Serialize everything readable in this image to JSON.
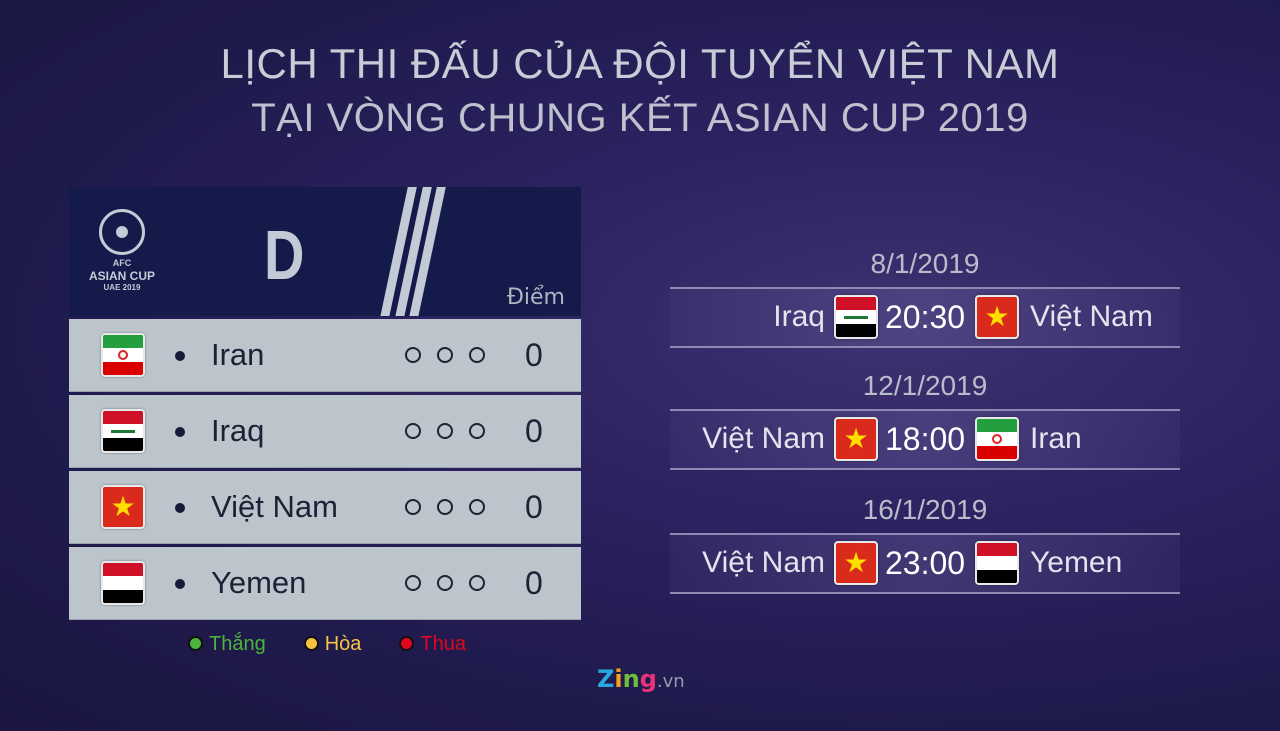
{
  "title": {
    "line1": "LỊCH THI ĐẤU CỦA ĐỘI TUYỂN VIỆT NAM",
    "line2": "TẠI VÒNG CHUNG KẾT ASIAN CUP 2019"
  },
  "table": {
    "logo": {
      "line1": "AFC",
      "line2": "ASIAN CUP",
      "line3": "UAE 2019"
    },
    "group": "D",
    "points_header": "Điểm",
    "rows": [
      {
        "team": "Iran",
        "flag": "iran",
        "points": "0"
      },
      {
        "team": "Iraq",
        "flag": "iraq",
        "points": "0"
      },
      {
        "team": "Việt Nam",
        "flag": "vietnam",
        "points": "0"
      },
      {
        "team": "Yemen",
        "flag": "yemen",
        "points": "0"
      }
    ]
  },
  "legend": [
    {
      "label": "Thắng",
      "color": "#4bb43a"
    },
    {
      "label": "Hòa",
      "color": "#f7c244"
    },
    {
      "label": "Thua",
      "color": "#e0061d"
    }
  ],
  "schedule": [
    {
      "date": "8/1/2019",
      "home": "Iraq",
      "home_flag": "iraq",
      "time": "20:30",
      "away": "Việt Nam",
      "away_flag": "vietnam"
    },
    {
      "date": "12/1/2019",
      "home": "Việt Nam",
      "home_flag": "vietnam",
      "time": "18:00",
      "away": "Iran",
      "away_flag": "iran"
    },
    {
      "date": "16/1/2019",
      "home": "Việt Nam",
      "home_flag": "vietnam",
      "time": "23:00",
      "away": "Yemen",
      "away_flag": "yemen"
    }
  ],
  "watermark": {
    "brand": "Zing",
    "suffix": ".vn"
  }
}
